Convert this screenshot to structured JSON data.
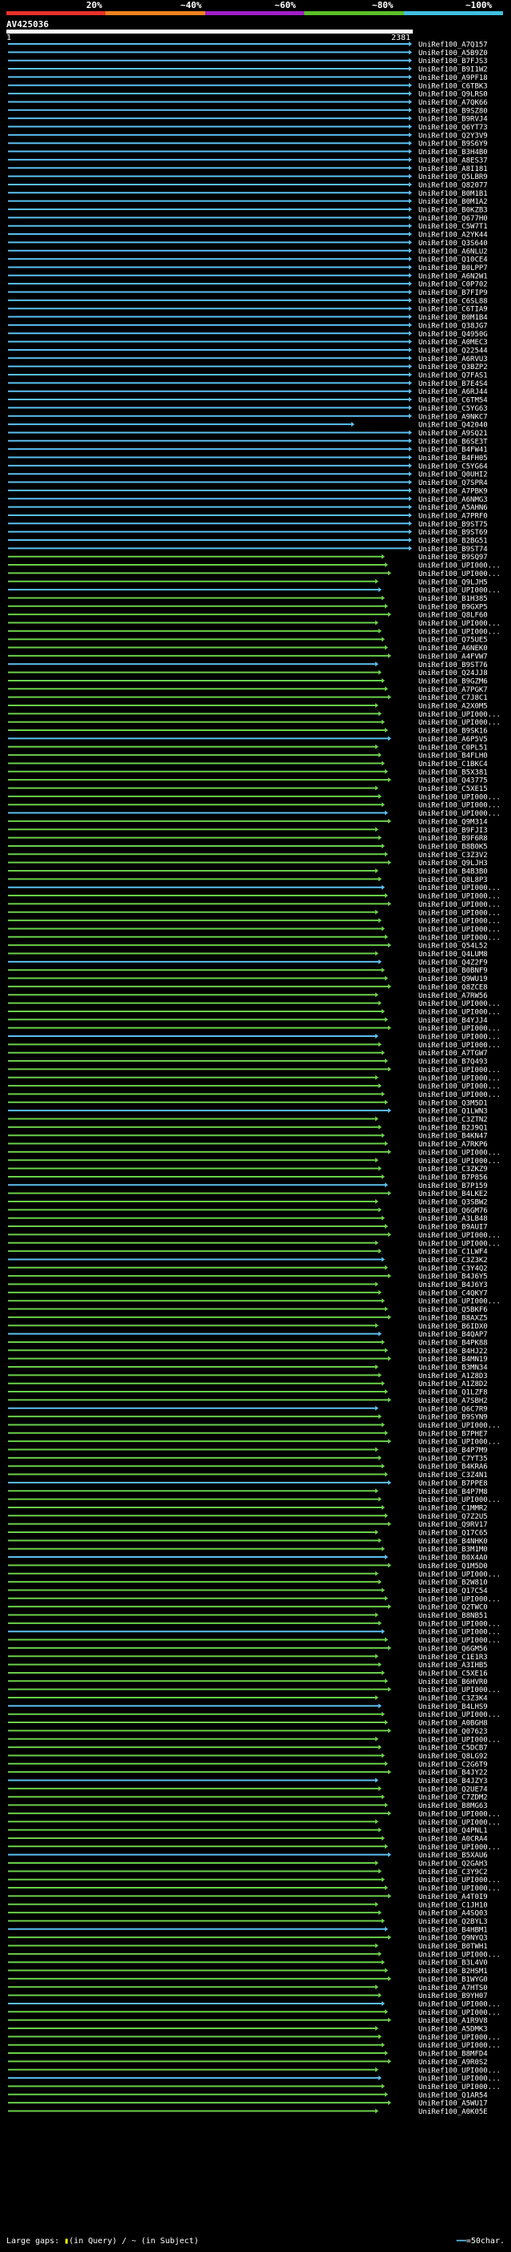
{
  "scale": {
    "labels": [
      "20%",
      "~40%",
      "~60%",
      "~80%",
      "~100%"
    ],
    "colors": [
      "#e8312a",
      "#f0821e",
      "#a020c8",
      "#5cbf2a",
      "#3fbfe0"
    ]
  },
  "query": {
    "title": "AV425036",
    "start": "1",
    "end": "2381"
  },
  "hit_colors": {
    "high": "#5cc0f0",
    "mid": "#6bd04a"
  },
  "hits": [
    "UniRef100_A7Q157",
    "UniRef100_A5B9Z0",
    "UniRef100_B7FJS3",
    "UniRef100_B9I1W2",
    "UniRef100_A9PF18",
    "UniRef100_C6TBK3",
    "UniRef100_Q9LRS0",
    "UniRef100_A7QK66",
    "UniRef100_B9SZ80",
    "UniRef100_B9RVJ4",
    "UniRef100_Q6YT73",
    "UniRef100_Q2Y3V9",
    "UniRef100_B9S6Y9",
    "UniRef100_B3H4B0",
    "UniRef100_A8ES37",
    "UniRef100_A8I181",
    "UniRef100_Q5LBR9",
    "UniRef100_Q82077",
    "UniRef100_B0M1B1",
    "UniRef100_B0M1A2",
    "UniRef100_B0KZB3",
    "UniRef100_Q677H0",
    "UniRef100_C5W7T1",
    "UniRef100_A2YK44",
    "UniRef100_Q3S640",
    "UniRef100_A6NLU2",
    "UniRef100_Q10CE4",
    "UniRef100_B0LPP7",
    "UniRef100_A6N2W1",
    "UniRef100_C0P702",
    "UniRef100_B7FIP9",
    "UniRef100_C6SL88",
    "UniRef100_C6TIA9",
    "UniRef100_B0M1B4",
    "UniRef100_Q38JG7",
    "UniRef100_Q4950G",
    "UniRef100_A0MEC3",
    "UniRef100_Q22544",
    "UniRef100_A6RVU3",
    "UniRef100_Q3BZP2",
    "UniRef100_Q7FAS1",
    "UniRef100_B7E4S4",
    "UniRef100_A6RJ44",
    "UniRef100_C6TM54",
    "UniRef100_C5YG63",
    "UniRef100_A9NKC7",
    "UniRef100_Q42040",
    "UniRef100_A9SQ21",
    "UniRef100_B6SE3T",
    "UniRef100_B4FW41",
    "UniRef100_B4FH05",
    "UniRef100_C5YG64",
    "UniRef100_Q0UHI2",
    "UniRef100_Q7SPR4",
    "UniRef100_A7PBK9",
    "UniRef100_A6NMG3",
    "UniRef100_A5AHN6",
    "UniRef100_A7PRF0",
    "UniRef100_B9ST75",
    "UniRef100_B9ST69",
    "UniRef100_B2BG51",
    "UniRef100_B9ST74",
    "UniRef100_B9SQ97",
    "UniRef100_UPI000...",
    "UniRef100_UPI000...",
    "UniRef100_Q9LJH5",
    "UniRef100_UPI000...",
    "UniRef100_B1H385",
    "UniRef100_B9GXP5",
    "UniRef100_Q8LF60",
    "UniRef100_UPI000...",
    "UniRef100_UPI000...",
    "UniRef100_Q75UE5",
    "UniRef100_A6NEK0",
    "UniRef100_A4FVW7",
    "UniRef100_B9ST76",
    "UniRef100_Q24JJ8",
    "UniRef100_B9GZM6",
    "UniRef100_A7PGK7",
    "UniRef100_C7J8C1",
    "UniRef100_A2X0M5",
    "UniRef100_UPI000...",
    "UniRef100_UPI000...",
    "UniRef100_B9SK16",
    "UniRef100_A6P5V5",
    "UniRef100_C0PL51",
    "UniRef100_B4FLH0",
    "UniRef100_C1BKC4",
    "UniRef100_B5X381",
    "UniRef100_Q43775",
    "UniRef100_C5XE15",
    "UniRef100_UPI000...",
    "UniRef100_UPI000...",
    "UniRef100_UPI000...",
    "UniRef100_Q9M314",
    "UniRef100_B9FJI3",
    "UniRef100_B9F6R8",
    "UniRef100_B8B0K5",
    "UniRef100_C3Z3V2",
    "UniRef100_Q9LJH3",
    "UniRef100_B4B3B0",
    "UniRef100_Q8L8P3",
    "UniRef100_UPI000...",
    "UniRef100_UPI000...",
    "UniRef100_UPI000...",
    "UniRef100_UPI000...",
    "UniRef100_UPI000...",
    "UniRef100_UPI000...",
    "UniRef100_UPI000...",
    "UniRef100_Q54L52",
    "UniRef100_Q4LUM8",
    "UniRef100_Q4Z2F9",
    "UniRef100_B0BNF9",
    "UniRef100_Q9WU19",
    "UniRef100_Q8ZCE8",
    "UniRef100_A7RW56",
    "UniRef100_UPI000...",
    "UniRef100_UPI000...",
    "UniRef100_B4YJJ4",
    "UniRef100_UPI000...",
    "UniRef100_UPI000...",
    "UniRef100_UPI000...",
    "UniRef100_A7TGW7",
    "UniRef100_B7Q493",
    "UniRef100_UPI000...",
    "UniRef100_UPI000...",
    "UniRef100_UPI000...",
    "UniRef100_UPI000...",
    "UniRef100_Q3M5D1",
    "UniRef100_Q1LWN3",
    "UniRef100_C3ZTN2",
    "UniRef100_B2J9Q1",
    "UniRef100_B4KN47",
    "UniRef100_A7RKP6",
    "UniRef100_UPI000...",
    "UniRef100_UPI000...",
    "UniRef100_C3ZKZ9",
    "UniRef100_B7P856",
    "UniRef100_B7P159",
    "UniRef100_B4LKE2",
    "UniRef100_Q3SBW2",
    "UniRef100_Q6GM76",
    "UniRef100_A3LB48",
    "UniRef100_B9AUI7",
    "UniRef100_UPI000...",
    "UniRef100_UPI000...",
    "UniRef100_C1LWF4",
    "UniRef100_C3Z3K2",
    "UniRef100_C3Y4Q2",
    "UniRef100_B4J6Y5",
    "UniRef100_B4J6Y3",
    "UniRef100_C4QKY7",
    "UniRef100_UPI000...",
    "UniRef100_Q5BKF6",
    "UniRef100_B8AXZ5",
    "UniRef100_B6IDX0",
    "UniRef100_B4QAP7",
    "UniRef100_B4PK88",
    "UniRef100_B4HJ22",
    "UniRef100_B4MN19",
    "UniRef100_B3MN34",
    "UniRef100_A1Z8D3",
    "UniRef100_A1Z8D2",
    "UniRef100_Q1LZF8",
    "UniRef100_A7SBH2",
    "UniRef100_Q6C7R9",
    "UniRef100_B9SYN9",
    "UniRef100_UPI000...",
    "UniRef100_B7PHE7",
    "UniRef100_UPI000...",
    "UniRef100_B4P7M9",
    "UniRef100_C7YT35",
    "UniRef100_B4KRA6",
    "UniRef100_C3Z4N1",
    "UniRef100_B7PPE8",
    "UniRef100_B4P7M8",
    "UniRef100_UPI000...",
    "UniRef100_C1MMR2",
    "UniRef100_Q7Z2U5",
    "UniRef100_Q9RV17",
    "UniRef100_Q17C65",
    "UniRef100_B4NHK0",
    "UniRef100_B3M1M0",
    "UniRef100_B0X4A0",
    "UniRef100_Q1M5D0",
    "UniRef100_UPI000...",
    "UniRef100_B2W810",
    "UniRef100_Q17C54",
    "UniRef100_UPI000...",
    "UniRef100_Q2TWC0",
    "UniRef100_B8NB51",
    "UniRef100_UPI000...",
    "UniRef100_UPI000...",
    "UniRef100_UPI000...",
    "UniRef100_Q6GM56",
    "UniRef100_C1E1R3",
    "UniRef100_A3IHB5",
    "UniRef100_C5XE16",
    "UniRef100_B6HVR0",
    "UniRef100_UPI000...",
    "UniRef100_C3Z3K4",
    "UniRef100_B4LHS9",
    "UniRef100_UPI000...",
    "UniRef100_A0BGH8",
    "UniRef100_Q07623",
    "UniRef100_UPI000...",
    "UniRef100_C5DCB7",
    "UniRef100_Q8LG92",
    "UniRef100_C2G6T9",
    "UniRef100_B4JY22",
    "UniRef100_B4JZY3",
    "UniRef100_Q2UE74",
    "UniRef100_C7ZDM2",
    "UniRef100_B8MG63",
    "UniRef100_UPI000...",
    "UniRef100_UPI000...",
    "UniRef100_Q4PNL1",
    "UniRef100_A0CRA4",
    "UniRef100_UPI000...",
    "UniRef100_B5XAU6",
    "UniRef100_Q2GAH3",
    "UniRef100_C3Y9C2",
    "UniRef100_UPI000...",
    "UniRef100_UPI000...",
    "UniRef100_A4T0I9",
    "UniRef100_C1JH10",
    "UniRef100_A4SQ03",
    "UniRef100_Q2BYL3",
    "UniRef100_B4HBM1",
    "UniRef100_Q9NYQ3",
    "UniRef100_B0TWH1",
    "UniRef100_UPI000...",
    "UniRef100_B3L4V0",
    "UniRef100_B2HSM1",
    "UniRef100_B1WYG0",
    "UniRef100_A7HTS0",
    "UniRef100_B9YH07",
    "UniRef100_UPI000...",
    "UniRef100_UPI000...",
    "UniRef100_A1R9V8",
    "UniRef100_A5DMK3",
    "UniRef100_UPI000...",
    "UniRef100_UPI000...",
    "UniRef100_B8MFD4",
    "UniRef100_A9R0S2",
    "UniRef100_UPI000...",
    "UniRef100_UPI000...",
    "UniRef100_UPI000...",
    "UniRef100_Q1AR54",
    "UniRef100_A5WU17",
    "UniRef100_A0K05E"
  ],
  "footer": {
    "gaps_label": "Large gaps: ",
    "gaps_query": "(in Query)",
    "gaps_sep": " / ",
    "gaps_subject": "~ (in Subject)",
    "legend": "=50char."
  }
}
